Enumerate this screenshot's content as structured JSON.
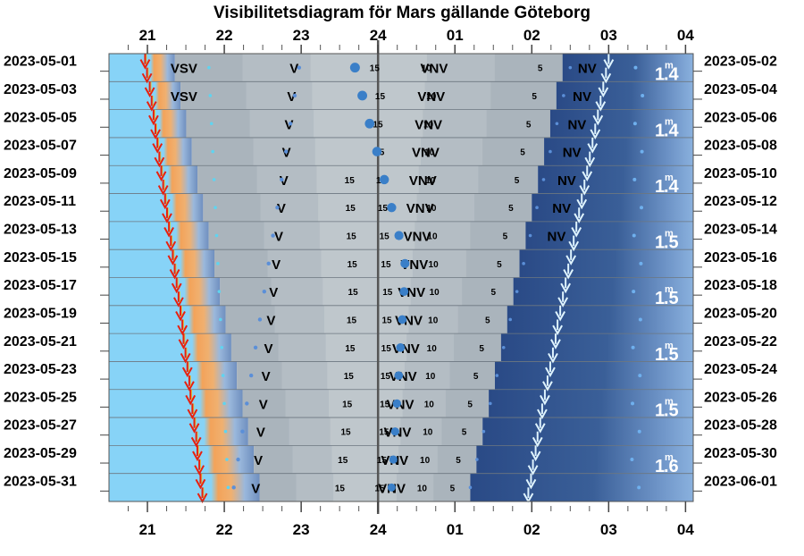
{
  "chart_data": {
    "type": "visibility-diagram",
    "title": "Visibilitetsdiagram för Mars gällande Göteborg",
    "x_ticks": [
      "21",
      "22",
      "23",
      "24",
      "01",
      "02",
      "03",
      "04"
    ],
    "x_range_hours": [
      20.5,
      28.1
    ],
    "left_dates": [
      "2023-05-01",
      "2023-05-03",
      "2023-05-05",
      "2023-05-07",
      "2023-05-09",
      "2023-05-11",
      "2023-05-13",
      "2023-05-15",
      "2023-05-17",
      "2023-05-19",
      "2023-05-21",
      "2023-05-23",
      "2023-05-25",
      "2023-05-27",
      "2023-05-29",
      "2023-05-31"
    ],
    "right_dates": [
      "2023-05-02",
      "2023-05-04",
      "2023-05-06",
      "2023-05-08",
      "2023-05-10",
      "2023-05-12",
      "2023-05-14",
      "2023-05-16",
      "2023-05-18",
      "2023-05-20",
      "2023-05-22",
      "2023-05-24",
      "2023-05-26",
      "2023-05-28",
      "2023-05-30",
      "2023-06-01"
    ],
    "sunset_hours": [
      20.97,
      21.03,
      21.08,
      21.13,
      21.18,
      21.23,
      21.28,
      21.33,
      21.38,
      21.43,
      21.47,
      21.52,
      21.56,
      21.61,
      21.65,
      21.69
    ],
    "sunrise_hours": [
      27.0,
      26.93,
      26.86,
      26.79,
      26.72,
      26.65,
      26.58,
      26.51,
      26.44,
      26.37,
      26.31,
      26.24,
      26.17,
      26.11,
      26.05,
      25.99
    ],
    "night_depth_left": [
      21.3,
      22.4
    ],
    "night_depth_right": [
      26.4,
      25.2
    ],
    "mars_transit_hours": [
      23.7,
      23.8,
      23.8,
      23.85,
      23.9,
      23.95,
      24.0,
      24.05,
      24.1,
      24.12,
      24.14,
      24.16,
      24.18,
      24.2,
      24.2,
      24.2
    ],
    "mars_setting_direction": "VNV",
    "west_labels": [
      {
        "date_index": 0,
        "text": "VSV"
      },
      {
        "date_index": 1,
        "text": "VSV"
      }
    ],
    "rising_direction": "NV",
    "magnitudes": [
      {
        "row": 0,
        "value": "1.4"
      },
      {
        "row": 2,
        "value": "1.4"
      },
      {
        "row": 4,
        "value": "1.4"
      },
      {
        "row": 6,
        "value": "1.5"
      },
      {
        "row": 8,
        "value": "1.5"
      },
      {
        "row": 10,
        "value": "1.5"
      },
      {
        "row": 12,
        "value": "1.5"
      },
      {
        "row": 14,
        "value": "1.6"
      }
    ],
    "contour_labels": [
      "15",
      "10",
      "5"
    ],
    "colors": {
      "day": "#87d3f7",
      "twilight_orange": "#f3a35a",
      "twilight_blue": "#8fb0d6",
      "night": "#2a4a86",
      "below_horizon": "#bfc7cc",
      "sunset_arrow": "#e8200e",
      "sunrise_arrow": "#dff4ff",
      "mars_dot": "#3a7fc8"
    }
  }
}
